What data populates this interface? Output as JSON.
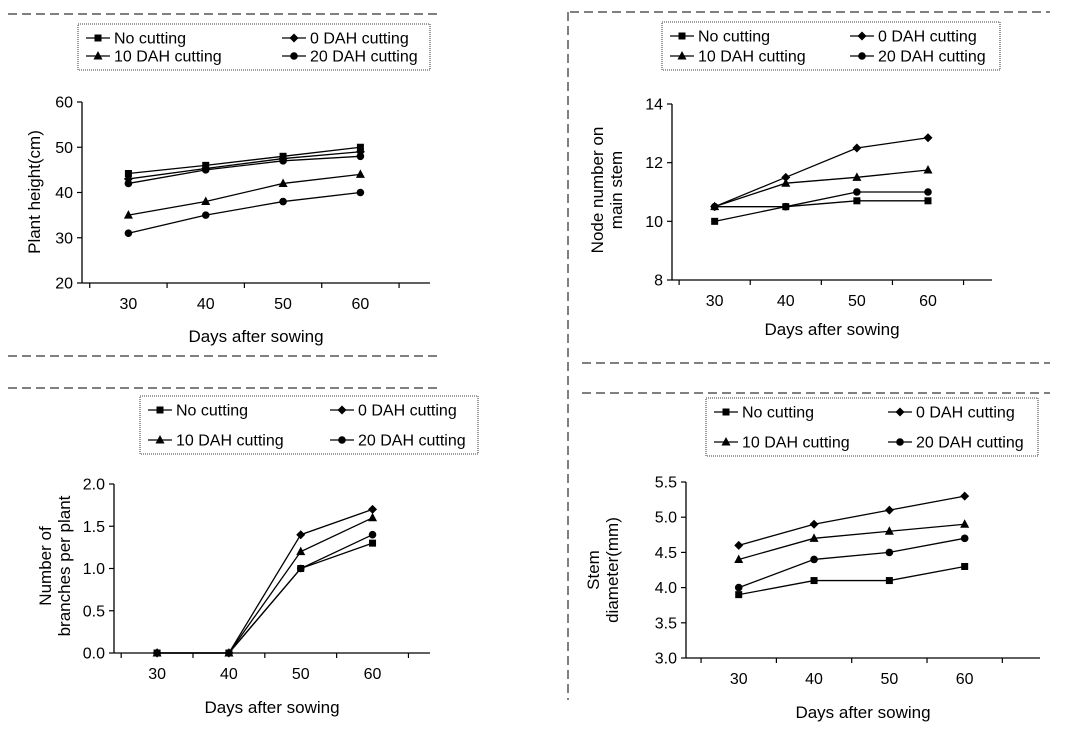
{
  "colors": {
    "line": "#000000",
    "background": "#ffffff"
  },
  "chart_data": [
    {
      "type": "line",
      "title": "",
      "xlabel": "Days after sowing",
      "ylabel": "Plant height(cm)",
      "ylabel_lines": [
        "Plant height(cm)"
      ],
      "x": [
        30,
        40,
        50,
        60
      ],
      "x_ticks": [
        30,
        40,
        50,
        60
      ],
      "y_ticks": [
        20,
        30,
        40,
        50,
        60
      ],
      "y_tick_labels": [
        "20",
        "30",
        "40",
        "50",
        "60"
      ],
      "xlim": [
        24,
        69
      ],
      "ylim": [
        20,
        60
      ],
      "grid": false,
      "legend_position": "top",
      "series": [
        {
          "name": "No cutting",
          "marker": "square",
          "values": [
            44.2,
            46,
            48,
            50
          ]
        },
        {
          "name": "0 DAH cutting",
          "marker": "diamond",
          "values": [
            43,
            45.3,
            47.5,
            49
          ]
        },
        {
          "name": "10 DAH cutting",
          "marker": "triangle",
          "values": [
            35,
            38,
            42,
            44
          ]
        },
        {
          "name": "20 DAH cutting",
          "marker": "circle",
          "values": [
            42,
            45,
            47,
            48
          ]
        },
        {
          "name": "",
          "marker": "circle",
          "values": [
            31,
            35,
            38,
            40
          ]
        }
      ]
    },
    {
      "type": "line",
      "title": "",
      "xlabel": "Days after sowing",
      "ylabel": "Node number on main stem",
      "ylabel_lines": [
        "Node number on",
        "main stem"
      ],
      "x": [
        30,
        40,
        50,
        60
      ],
      "x_ticks": [
        30,
        40,
        50,
        60
      ],
      "y_ticks": [
        8,
        10,
        12,
        14
      ],
      "y_tick_labels": [
        "8",
        "10",
        "12",
        "14"
      ],
      "xlim": [
        24,
        69
      ],
      "ylim": [
        8,
        14
      ],
      "grid": false,
      "legend_position": "top",
      "series": [
        {
          "name": "No cutting",
          "marker": "square",
          "values": [
            10,
            10.5,
            10.7,
            10.7
          ]
        },
        {
          "name": "0 DAH cutting",
          "marker": "diamond",
          "values": [
            10.5,
            11.5,
            12.5,
            12.85
          ]
        },
        {
          "name": "10 DAH cutting",
          "marker": "triangle",
          "values": [
            10.5,
            11.3,
            11.5,
            11.75
          ]
        },
        {
          "name": "20 DAH cutting",
          "marker": "circle",
          "values": [
            10.5,
            10.5,
            11,
            11
          ]
        }
      ]
    },
    {
      "type": "line",
      "title": "",
      "xlabel": "Days after sowing",
      "ylabel": "Number of branches per plant",
      "ylabel_lines": [
        "Number   of",
        "branches per plant"
      ],
      "x": [
        30,
        40,
        50,
        60
      ],
      "x_ticks": [
        30,
        40,
        50,
        60
      ],
      "y_ticks": [
        0,
        0.5,
        1,
        1.5,
        2
      ],
      "y_tick_labels": [
        "0.0",
        "0.5",
        "1.0",
        "1.5",
        "2.0"
      ],
      "xlim": [
        24,
        68
      ],
      "ylim": [
        0,
        2
      ],
      "grid": false,
      "legend_position": "top",
      "series": [
        {
          "name": "No cutting",
          "marker": "square",
          "values": [
            0,
            0,
            1,
            1.3
          ]
        },
        {
          "name": "0 DAH cutting",
          "marker": "diamond",
          "values": [
            0,
            0,
            1.4,
            1.7
          ]
        },
        {
          "name": "10 DAH cutting",
          "marker": "triangle",
          "values": [
            0,
            0,
            1.2,
            1.6
          ]
        },
        {
          "name": "20 DAH cutting",
          "marker": "circle",
          "values": [
            0,
            0,
            1,
            1.4
          ]
        }
      ]
    },
    {
      "type": "line",
      "title": "",
      "xlabel": "Days after sowing",
      "ylabel": "Stem diameter(mm)",
      "ylabel_lines": [
        "Stem",
        "diameter(mm)"
      ],
      "x": [
        30,
        40,
        50,
        60
      ],
      "x_ticks": [
        30,
        40,
        50,
        60
      ],
      "y_ticks": [
        3,
        3.5,
        4,
        4.5,
        5,
        5.5
      ],
      "y_tick_labels": [
        "3.0",
        "3.5",
        "4.0",
        "4.5",
        "5.0",
        "5.5"
      ],
      "xlim": [
        23,
        70
      ],
      "ylim": [
        3,
        5.5
      ],
      "grid": false,
      "legend_position": "top",
      "series": [
        {
          "name": "No cutting",
          "marker": "square",
          "values": [
            3.9,
            4.1,
            4.1,
            4.3
          ]
        },
        {
          "name": "0 DAH cutting",
          "marker": "diamond",
          "values": [
            4.6,
            4.9,
            5.1,
            5.3
          ]
        },
        {
          "name": "10 DAH cutting",
          "marker": "triangle",
          "values": [
            4.4,
            4.7,
            4.8,
            4.9
          ]
        },
        {
          "name": "20 DAH cutting",
          "marker": "circle",
          "values": [
            4,
            4.4,
            4.5,
            4.7
          ]
        }
      ]
    }
  ]
}
